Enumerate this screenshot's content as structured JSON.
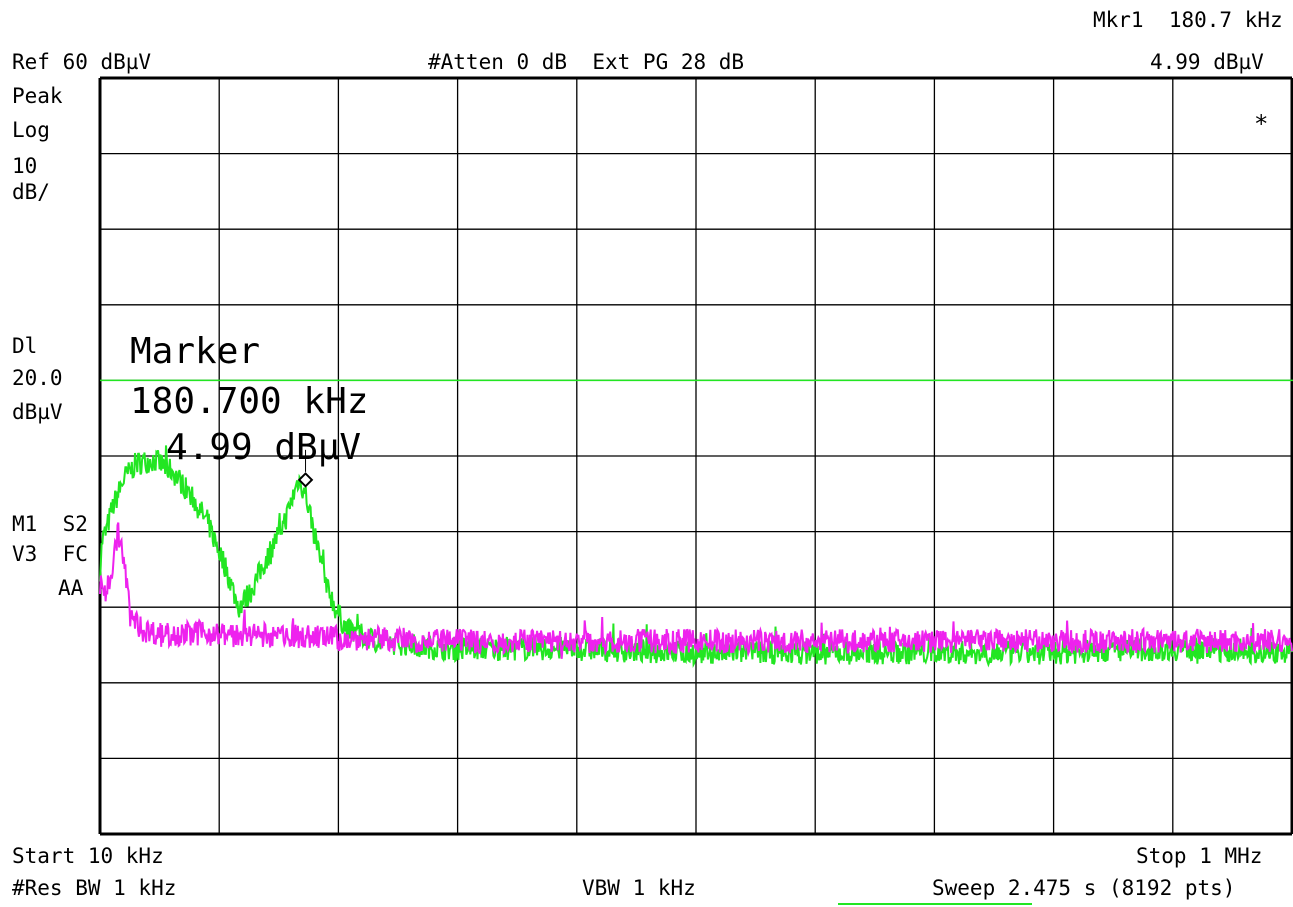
{
  "header": {
    "marker_freq": "Mkr1  180.7 kHz",
    "ref_level": "Ref 60 dBµV",
    "atten": "#Atten 0 dB  Ext PG 28 dB",
    "marker_ampl": "4.99 dBµV"
  },
  "left_panel": {
    "detector": "Peak",
    "scale_type": "Log",
    "scale_value": "10",
    "scale_unit": "dB/",
    "dl_label": "Dl",
    "dl_value": "20.0",
    "dl_unit": "dBµV",
    "trace_mode_1": "M1  S2",
    "trace_mode_2": "V3  FC",
    "coupling": "AA"
  },
  "annotations": {
    "asterisk": "*",
    "marker_title": "Marker",
    "marker_freq": "180.700 kHz",
    "marker_ampl": "4.99 dBµV"
  },
  "footer": {
    "start": "Start 10 kHz",
    "stop": "Stop 1 MHz",
    "rbw": "#Res BW 1 kHz",
    "vbw": "VBW 1 kHz",
    "sweep": "Sweep 2.475 s (8192 pts)"
  },
  "colors": {
    "grid": "#000000",
    "trace_1": "#22e622",
    "trace_2": "#ee22ee",
    "display_line": "#22e622",
    "marker": "#000000"
  },
  "chart_data": {
    "type": "line",
    "x_unit": "kHz",
    "y_unit": "dBµV",
    "xlim": [
      10,
      1000
    ],
    "ylim": [
      -40,
      60
    ],
    "x_scale": "linear",
    "y_scale": "log (10 dB/div)",
    "grid": true,
    "divisions": {
      "x": 10,
      "y": 10
    },
    "display_line": 20.0,
    "marker": {
      "x": 180.7,
      "y": 4.99
    },
    "series": [
      {
        "color": "#22e622",
        "points": [
          [
            10,
            -5
          ],
          [
            12,
            -1
          ],
          [
            15,
            0
          ],
          [
            20,
            3
          ],
          [
            30,
            7
          ],
          [
            40,
            9
          ],
          [
            55,
            9.5
          ],
          [
            70,
            8
          ],
          [
            85,
            5
          ],
          [
            100,
            1
          ],
          [
            115,
            -5
          ],
          [
            125,
            -10
          ],
          [
            135,
            -8
          ],
          [
            150,
            -3
          ],
          [
            165,
            2
          ],
          [
            175,
            7
          ],
          [
            180.7,
            4.99
          ],
          [
            185,
            2
          ],
          [
            195,
            -5
          ],
          [
            205,
            -10
          ],
          [
            215,
            -13
          ],
          [
            240,
            -14.5
          ],
          [
            300,
            -15.5
          ],
          [
            400,
            -15.5
          ],
          [
            500,
            -16
          ],
          [
            600,
            -16
          ],
          [
            700,
            -16
          ],
          [
            800,
            -16
          ],
          [
            900,
            -15.5
          ],
          [
            1000,
            -16
          ]
        ]
      },
      {
        "color": "#ee22ee",
        "points": [
          [
            10,
            -7
          ],
          [
            15,
            -8
          ],
          [
            20,
            -5
          ],
          [
            25,
            0
          ],
          [
            30,
            -4
          ],
          [
            35,
            -11
          ],
          [
            45,
            -13
          ],
          [
            60,
            -13.5
          ],
          [
            100,
            -13.5
          ],
          [
            200,
            -14
          ],
          [
            300,
            -14.5
          ],
          [
            400,
            -14.5
          ],
          [
            500,
            -14.5
          ],
          [
            600,
            -14.5
          ],
          [
            700,
            -14.5
          ],
          [
            800,
            -14.5
          ],
          [
            900,
            -14.5
          ],
          [
            1000,
            -14.5
          ]
        ]
      }
    ]
  }
}
